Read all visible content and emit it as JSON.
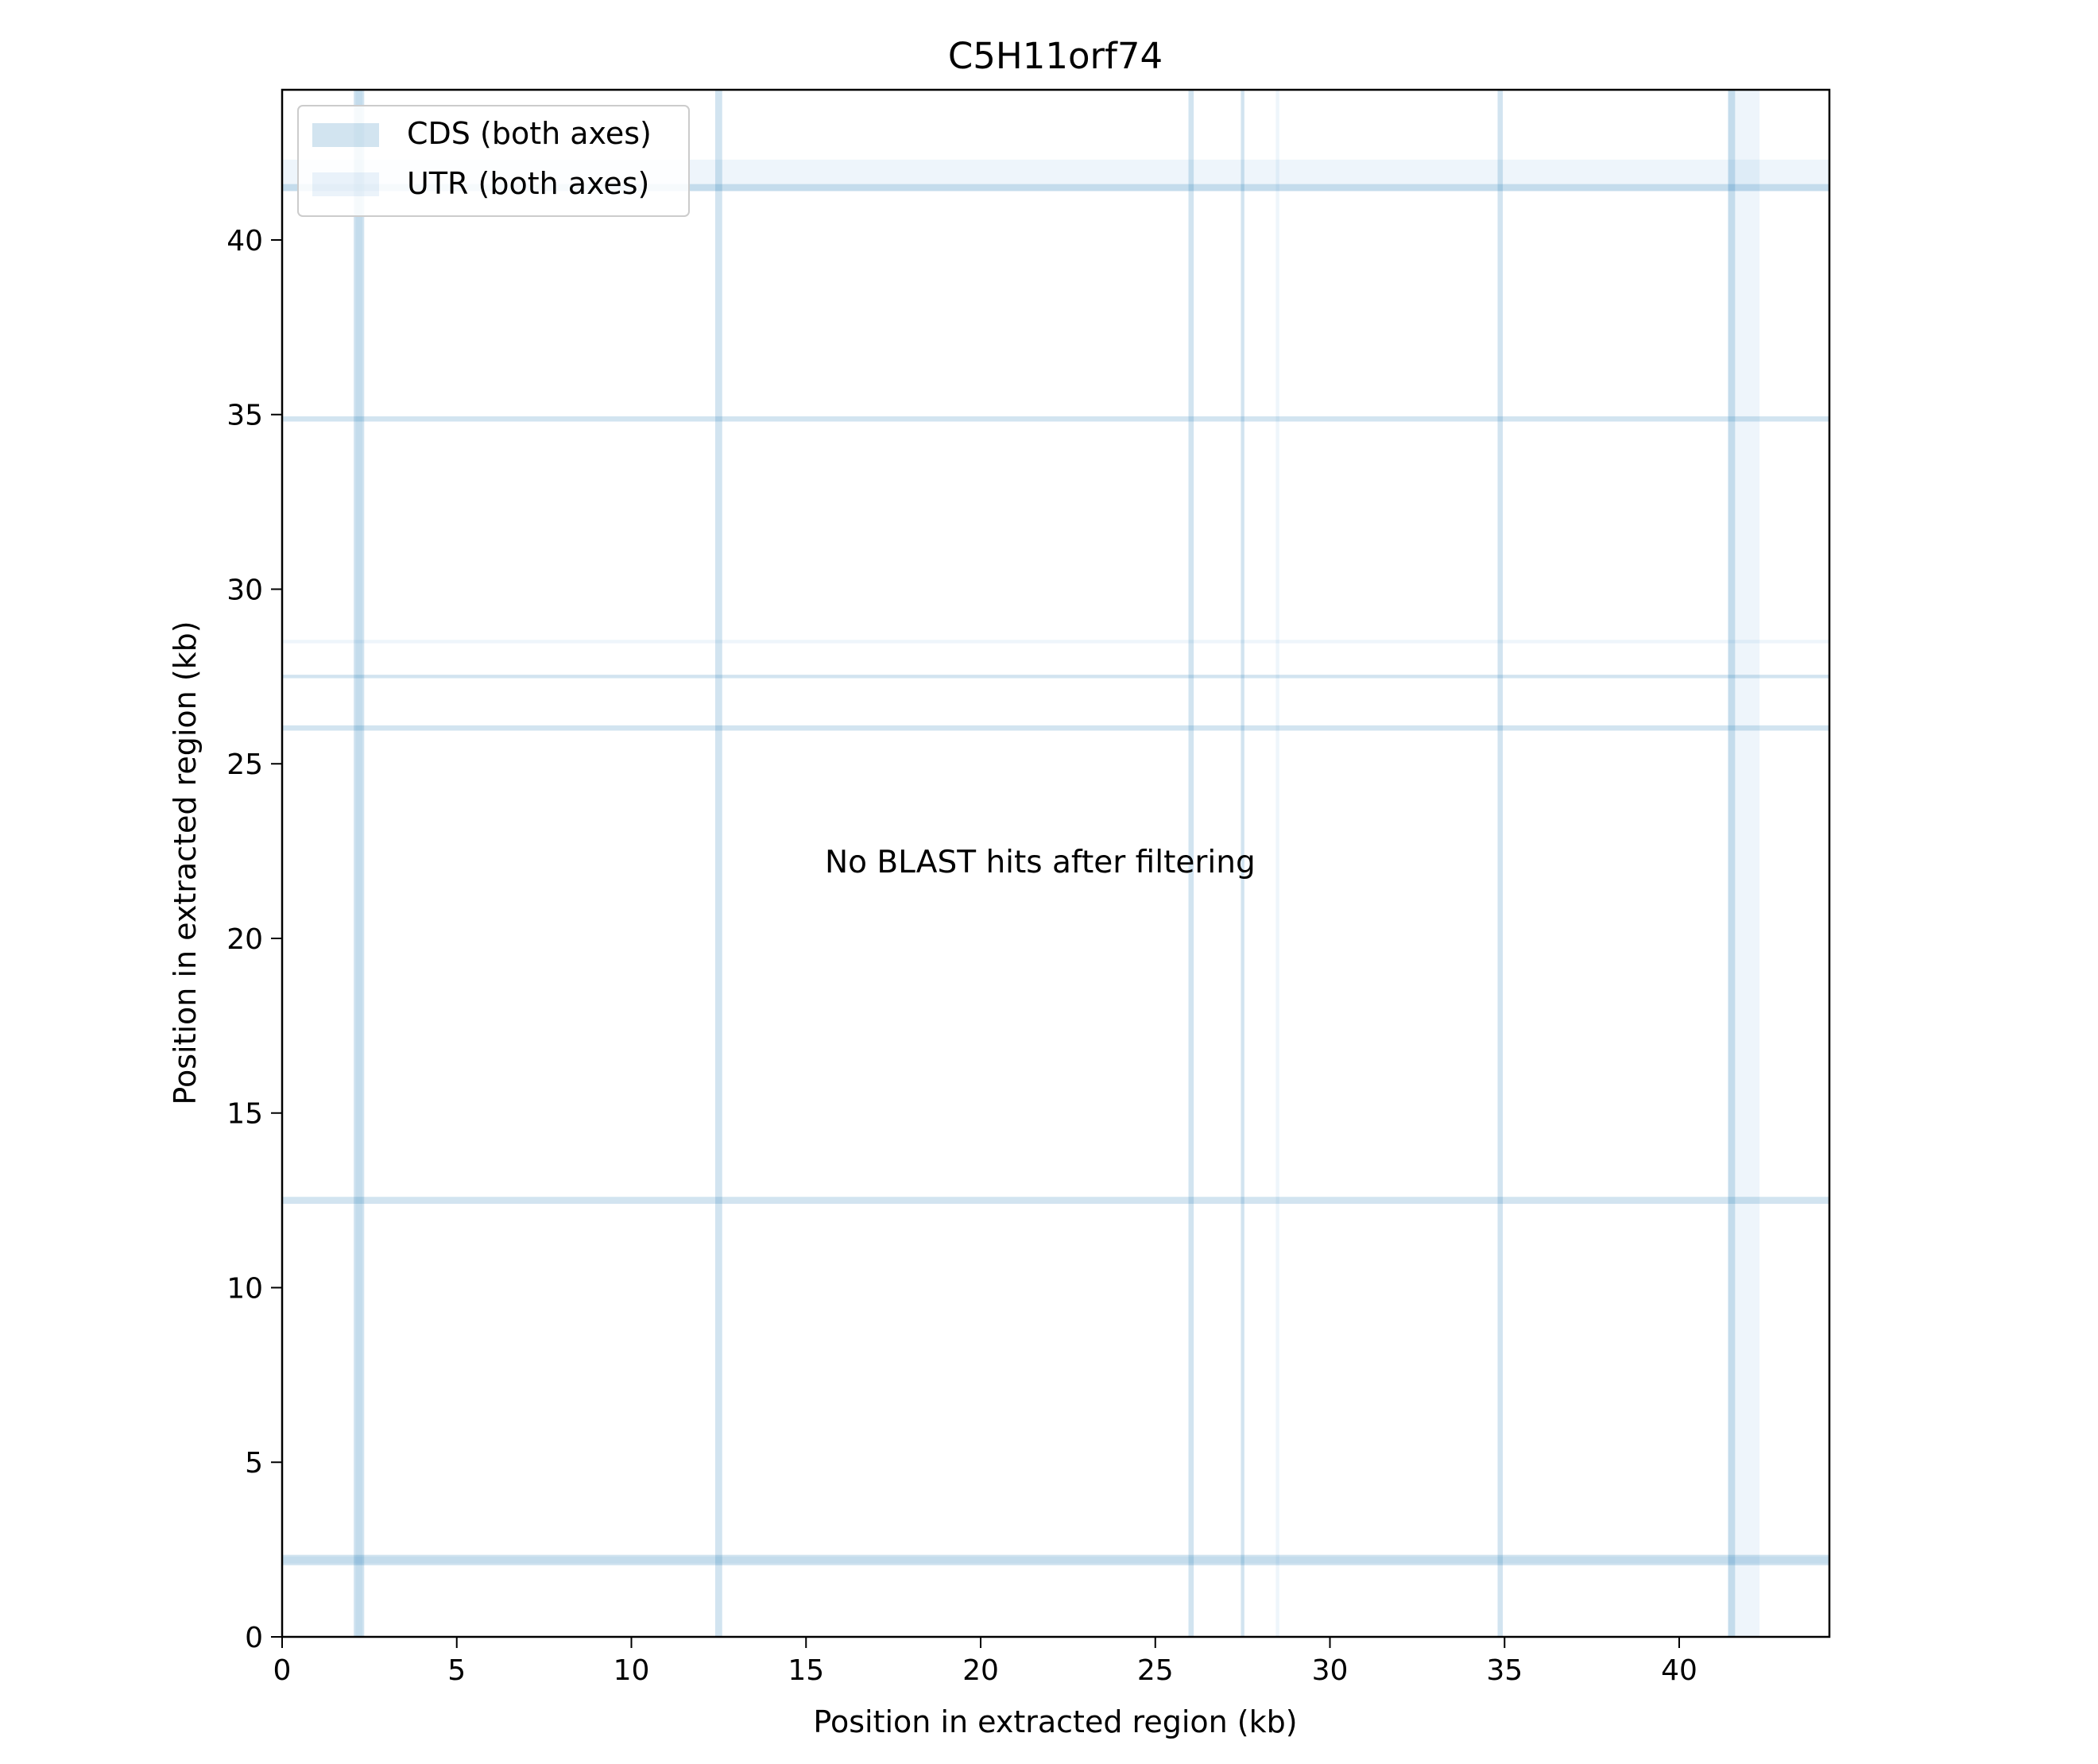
{
  "chart_data": {
    "type": "heatmap",
    "title": "C5H11orf74",
    "xlabel": "Position in extracted region (kb)",
    "ylabel": "Position in extracted region (kb)",
    "xlim": [
      0,
      44.3
    ],
    "ylim": [
      0,
      44.3
    ],
    "xticks": [
      0,
      5,
      10,
      15,
      20,
      25,
      30,
      35,
      40
    ],
    "yticks": [
      0,
      5,
      10,
      15,
      20,
      25,
      30,
      35,
      40
    ],
    "grid": false,
    "legend_position": "top-left",
    "legend": [
      {
        "label": "CDS (both axes)",
        "kind": "cds"
      },
      {
        "label": "UTR (both axes)",
        "kind": "utr"
      }
    ],
    "annotation": "No BLAST hits after filtering",
    "features": {
      "cds": [
        [
          2.05,
          2.35
        ],
        [
          12.4,
          12.6
        ],
        [
          25.95,
          26.1
        ],
        [
          27.45,
          27.55
        ],
        [
          34.8,
          34.95
        ],
        [
          41.4,
          41.6
        ]
      ],
      "utr": [
        [
          2.1,
          2.3
        ],
        [
          28.45,
          28.55
        ],
        [
          41.4,
          42.3
        ]
      ]
    },
    "colors": {
      "cds": "#1f77b4",
      "utr": "#5b9bd5"
    }
  }
}
